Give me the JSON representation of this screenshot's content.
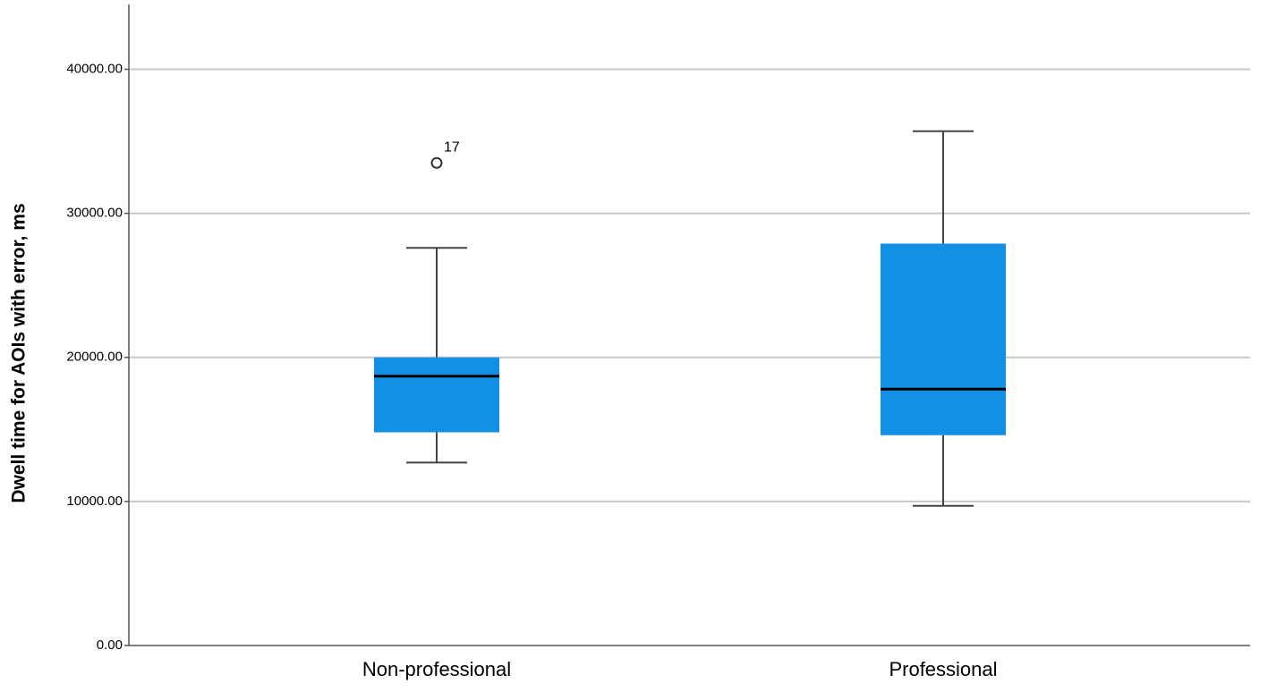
{
  "chart_data": {
    "type": "box",
    "y_label": "Dwell time for AOIs with error, ms",
    "categories": [
      "Non-professional",
      "Professional"
    ],
    "color": "#1290e6",
    "boxes": [
      {
        "min": 12700,
        "q1": 14800,
        "median": 18700,
        "q3": 20000,
        "max": 27600
      },
      {
        "min": 9700,
        "q1": 14600,
        "median": 17800,
        "q3": 27900,
        "max": 35700
      }
    ],
    "outliers": [
      [
        {
          "value": 33500,
          "label": "17"
        }
      ],
      []
    ],
    "ylim": [
      0,
      44500
    ],
    "yticks": [
      {
        "value": 0,
        "label": "0.00"
      },
      {
        "value": 10000,
        "label": "10000.00"
      },
      {
        "value": 20000,
        "label": "20000.00"
      },
      {
        "value": 30000,
        "label": "30000.00"
      },
      {
        "value": 40000,
        "label": "40000.00"
      }
    ],
    "grid": true
  }
}
